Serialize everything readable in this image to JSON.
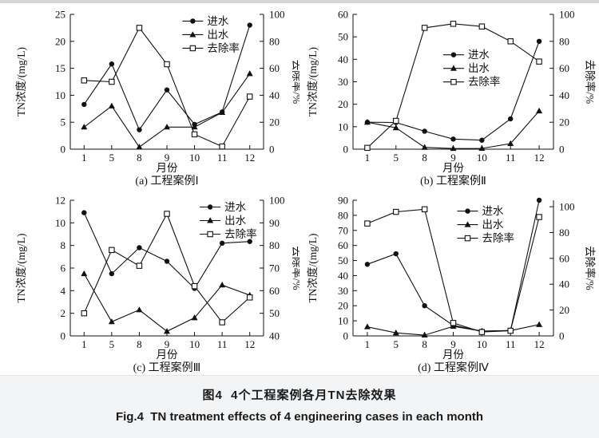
{
  "figure": {
    "caption_zh": "图4  4个工程案例各月TN去除效果",
    "caption_en": "Fig.4  TN treatment effects of 4 engineering cases in each month"
  },
  "chart_data": [
    {
      "type": "line",
      "title": "(a) 工程案例Ⅰ",
      "xlabel": "月份",
      "ylabel_left": "TN浓度/(mg/L)",
      "ylabel_right": "去除率/%",
      "categories": [
        "1",
        "5",
        "8",
        "9",
        "10",
        "11",
        "12"
      ],
      "left_axis": {
        "min": 0,
        "max": 25,
        "ticks": [
          0,
          5,
          10,
          15,
          20,
          25
        ]
      },
      "right_axis": {
        "min": 0,
        "max": 100,
        "ticks": [
          0,
          20,
          40,
          60,
          80,
          100
        ]
      },
      "legend": {
        "position": "upper-right-inside",
        "x": 0.58,
        "y": 0.05
      },
      "grid": false,
      "series": [
        {
          "name": "进水",
          "key": "influent",
          "marker": "circle",
          "axis": "left",
          "values": [
            8.3,
            15.8,
            3.6,
            11,
            4.6,
            6.9,
            23
          ]
        },
        {
          "name": "出水",
          "key": "effluent",
          "marker": "triangle",
          "axis": "left",
          "values": [
            4.1,
            8,
            0.4,
            4.1,
            4.1,
            6.8,
            14
          ]
        },
        {
          "name": "去除率",
          "key": "removal",
          "marker": "square",
          "axis": "right",
          "values": [
            51,
            50,
            90,
            63,
            11,
            2,
            39
          ]
        }
      ]
    },
    {
      "type": "line",
      "title": "(b) 工程案例Ⅱ",
      "xlabel": "月份",
      "ylabel_left": "TN浓度/(mg/L)",
      "ylabel_right": "去除率/%",
      "categories": [
        "1",
        "5",
        "8",
        "9",
        "10",
        "11",
        "12"
      ],
      "left_axis": {
        "min": 0,
        "max": 60,
        "ticks": [
          0,
          10,
          20,
          30,
          40,
          50,
          60
        ]
      },
      "right_axis": {
        "min": 0,
        "max": 100,
        "ticks": [
          0,
          20,
          40,
          60,
          80,
          100
        ]
      },
      "legend": {
        "position": "center-inside",
        "x": 0.45,
        "y": 0.3
      },
      "grid": false,
      "series": [
        {
          "name": "进水",
          "key": "influent",
          "marker": "circle",
          "axis": "left",
          "values": [
            12,
            11.9,
            8,
            4.5,
            4,
            13.5,
            48
          ]
        },
        {
          "name": "出水",
          "key": "effluent",
          "marker": "triangle",
          "axis": "left",
          "values": [
            12,
            9.5,
            0.8,
            0.3,
            0.35,
            2.5,
            17
          ]
        },
        {
          "name": "去除率",
          "key": "removal",
          "marker": "square",
          "axis": "right",
          "values": [
            1,
            21,
            90,
            93,
            91,
            80,
            65
          ]
        }
      ]
    },
    {
      "type": "line",
      "title": "(c) 工程案例Ⅲ",
      "xlabel": "月份",
      "ylabel_left": "TN浓度/(mg/L)",
      "ylabel_right": "去除率/%",
      "categories": [
        "1",
        "5",
        "8",
        "9",
        "10",
        "11",
        "12"
      ],
      "left_axis": {
        "min": 0,
        "max": 12,
        "ticks": [
          0,
          2,
          4,
          6,
          8,
          10,
          12
        ]
      },
      "right_axis": {
        "min": 40,
        "max": 100,
        "ticks": [
          40,
          50,
          60,
          70,
          80,
          90,
          100
        ]
      },
      "legend": {
        "position": "upper-right-inside",
        "x": 0.67,
        "y": 0.05
      },
      "grid": false,
      "series": [
        {
          "name": "进水",
          "key": "influent",
          "marker": "circle",
          "axis": "left",
          "values": [
            10.9,
            5.5,
            7.8,
            6.6,
            4.2,
            8.2,
            8.35
          ]
        },
        {
          "name": "出水",
          "key": "effluent",
          "marker": "triangle",
          "axis": "left",
          "values": [
            5.5,
            1.25,
            2.3,
            0.4,
            1.6,
            4.5,
            3.6
          ]
        },
        {
          "name": "去除率",
          "key": "removal",
          "marker": "square",
          "axis": "right",
          "values": [
            50,
            78,
            71,
            94,
            62,
            46,
            57
          ]
        }
      ]
    },
    {
      "type": "line",
      "title": "(d) 工程案例Ⅳ",
      "xlabel": "月份",
      "ylabel_left": "TN浓度/(mg/L)",
      "ylabel_right": "去除率/%",
      "categories": [
        "1",
        "5",
        "8",
        "9",
        "10",
        "11",
        "12"
      ],
      "left_axis": {
        "min": 0,
        "max": 90,
        "ticks": [
          0,
          10,
          20,
          30,
          40,
          50,
          60,
          70,
          80,
          90
        ]
      },
      "right_axis": {
        "min": 0,
        "max": 100,
        "scale_max": 105,
        "ticks": [
          0,
          20,
          40,
          60,
          80,
          100
        ]
      },
      "legend": {
        "position": "upper-right-inside",
        "x": 0.52,
        "y": 0.08
      },
      "grid": false,
      "series": [
        {
          "name": "进水",
          "key": "influent",
          "marker": "circle",
          "axis": "left",
          "values": [
            47.5,
            54.5,
            20,
            7,
            3.2,
            3.6,
            90
          ]
        },
        {
          "name": "出水",
          "key": "effluent",
          "marker": "triangle",
          "axis": "left",
          "values": [
            6,
            2,
            0.5,
            6.3,
            3.1,
            3.5,
            7.5
          ]
        },
        {
          "name": "去除率",
          "key": "removal",
          "marker": "square",
          "axis": "right",
          "values": [
            87,
            96,
            98,
            10,
            3,
            4,
            92
          ]
        }
      ]
    }
  ]
}
